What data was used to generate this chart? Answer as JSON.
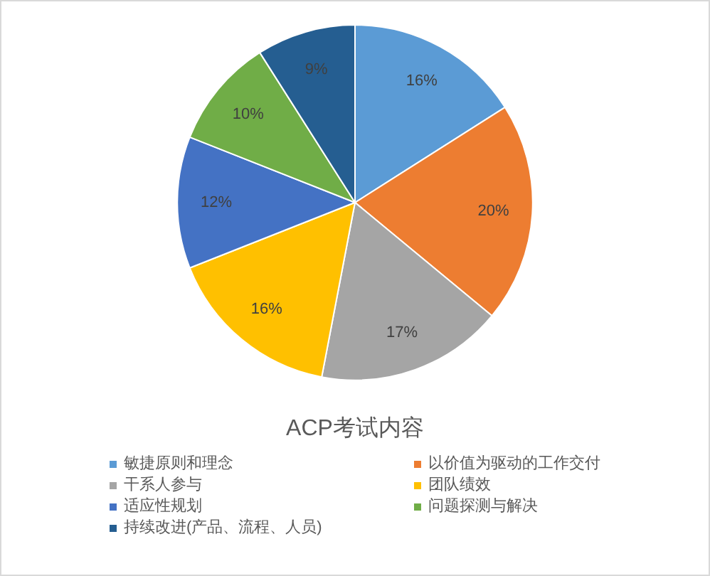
{
  "chart_data": {
    "type": "pie",
    "title": "ACP考试内容",
    "categories": [
      "敏捷原则和理念",
      "以价值为驱动的工作交付",
      "干系人参与",
      "团队绩效",
      "适应性规划",
      "问题探测与解决",
      "持续改进(产品、流程、人员)"
    ],
    "values": [
      16,
      20,
      17,
      16,
      12,
      10,
      9
    ],
    "value_labels": [
      "16%",
      "20%",
      "17%",
      "16%",
      "12%",
      "10%",
      "9%"
    ],
    "colors": [
      "#5b9bd5",
      "#ed7d31",
      "#a5a5a5",
      "#ffc000",
      "#4472c4",
      "#70ad47",
      "#255e91"
    ],
    "legend": "bottom"
  }
}
